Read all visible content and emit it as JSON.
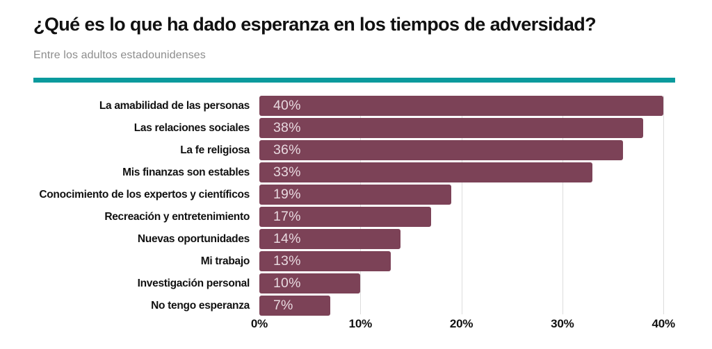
{
  "title": "¿Qué es lo que ha dado esperanza en los tiempos de adversidad?",
  "subtitle": "Entre los adultos estadounidenses",
  "colors": {
    "bar": "#7c4257",
    "rule": "#0a9a9d",
    "grid": "#dcdcdc",
    "title": "#111111",
    "subtitle": "#8d8d8d",
    "value": "#e8d9df",
    "axis": "#111111"
  },
  "chart_data": {
    "type": "bar",
    "orientation": "horizontal",
    "title": "¿Qué es lo que ha dado esperanza en los tiempos de adversidad?",
    "subtitle": "Entre los adultos estadounidenses",
    "categories": [
      "La amabilidad de las personas",
      "Las relaciones sociales",
      "La fe religiosa",
      "Mis finanzas son estables",
      "Conocimiento de los expertos y científicos",
      "Recreación y entretenimiento",
      "Nuevas oportunidades",
      "Mi trabajo",
      "Investigación personal",
      "No tengo esperanza"
    ],
    "values": [
      40,
      38,
      36,
      33,
      19,
      17,
      14,
      13,
      10,
      7
    ],
    "value_labels": [
      "40%",
      "38%",
      "36%",
      "33%",
      "19%",
      "17%",
      "14%",
      "13%",
      "10%",
      "7%"
    ],
    "xlabel": "",
    "ylabel": "",
    "xlim": [
      0,
      40
    ],
    "xticks": [
      {
        "value": 0,
        "label": "0%"
      },
      {
        "value": 10,
        "label": "10%"
      },
      {
        "value": 20,
        "label": "20%"
      },
      {
        "value": 30,
        "label": "30%"
      },
      {
        "value": 40,
        "label": "40%"
      }
    ],
    "grid": "vertical gridlines at 10/20/30/40, none at 0",
    "legend": "none",
    "value_label_position": "inside-left"
  }
}
